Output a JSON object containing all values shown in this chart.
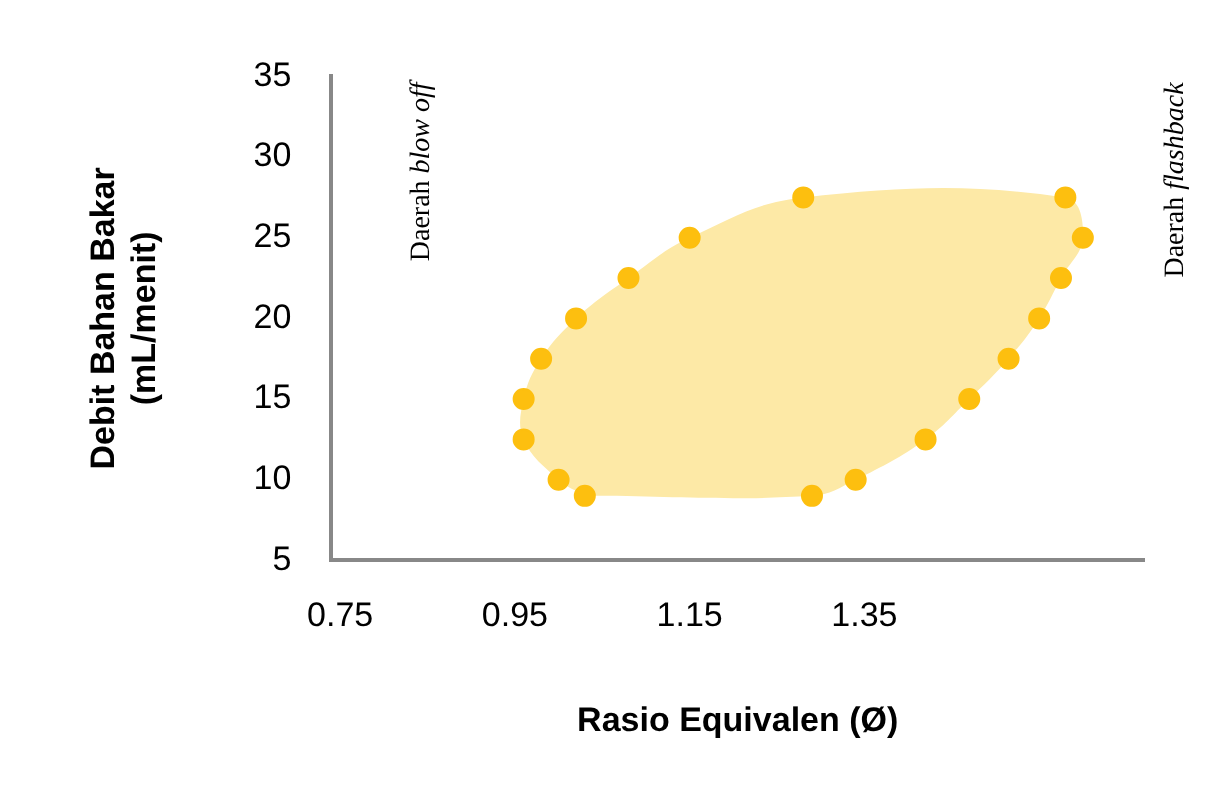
{
  "chart_data": {
    "type": "scatter",
    "xlabel": "Rasio Equivalen (Ø)",
    "ylabel": "Debit Bahan Bakar\n(mL/menit)",
    "annotations": [
      "Daerah blow off",
      "Daerah flashback"
    ],
    "xlim": [
      0.74,
      1.67
    ],
    "xticks": [
      0.75,
      0.95,
      1.15,
      1.35
    ],
    "ylim": [
      5,
      35
    ],
    "yticks": [
      5,
      10,
      15,
      20,
      25,
      30,
      35
    ],
    "grid": false,
    "legend": false,
    "series": [
      {
        "type": "area",
        "marker": "none",
        "color": "#fde9a6",
        "x": [
          1.03,
          1.0,
          0.96,
          0.96,
          0.98,
          1.02,
          1.08,
          1.15,
          1.28,
          1.58,
          1.6,
          1.575,
          1.55,
          1.515,
          1.47,
          1.42,
          1.34,
          1.29,
          1.03
        ],
        "values": [
          9,
          10,
          12.5,
          15,
          17.5,
          20,
          22.5,
          25,
          27.5,
          27.5,
          25,
          22.5,
          20,
          17.5,
          15,
          12.5,
          10,
          9,
          9
        ]
      },
      {
        "type": "scatter",
        "marker": "circle",
        "color": "#fdbf0f",
        "x": [
          1.03,
          1.0,
          0.96,
          0.96,
          0.98,
          1.02,
          1.08,
          1.15,
          1.28,
          1.58,
          1.6,
          1.575,
          1.55,
          1.515,
          1.47,
          1.42,
          1.34,
          1.29
        ],
        "values": [
          9,
          10,
          12.5,
          15,
          17.5,
          20,
          22.5,
          25,
          27.5,
          27.5,
          25,
          22.5,
          20,
          17.5,
          15,
          12.5,
          10,
          9
        ]
      }
    ]
  }
}
